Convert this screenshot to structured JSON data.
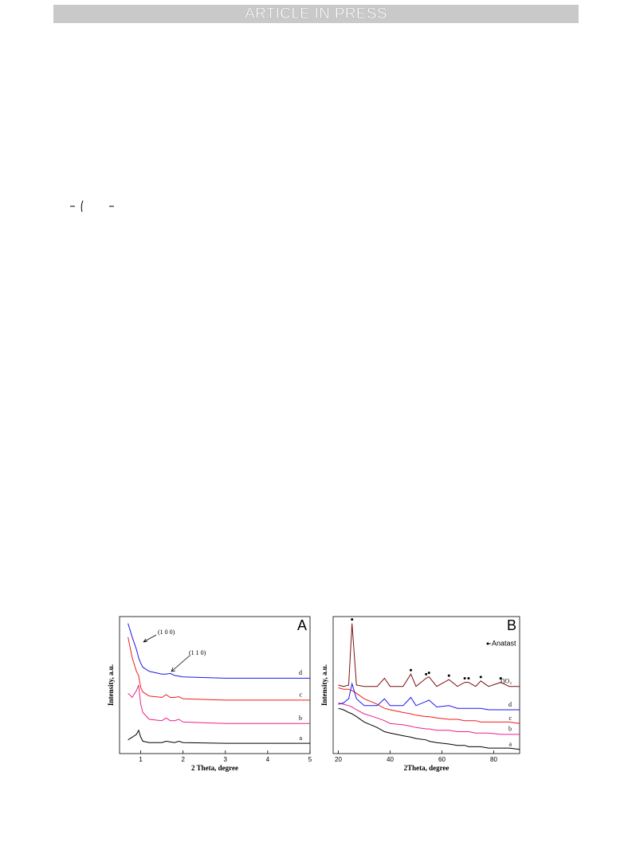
{
  "header": {
    "title": "ARTICLE IN PRESS"
  },
  "chart_data": [
    {
      "type": "line",
      "panel": "A",
      "xlabel": "2 Theta, degree",
      "ylabel": "Intensity, a.u.",
      "xlim": [
        0.5,
        5
      ],
      "xticks": [
        1,
        2,
        3,
        4,
        5
      ],
      "ylim": [
        0,
        100
      ],
      "annotations": [
        "(1 0 0)",
        "(1 1 0)"
      ],
      "x": [
        0.7,
        0.8,
        0.9,
        0.95,
        1.0,
        1.05,
        1.2,
        1.5,
        1.6,
        1.7,
        1.8,
        1.9,
        2,
        3,
        4,
        5
      ],
      "series": [
        {
          "name": "a",
          "color": "#000000",
          "values": [
            10,
            12,
            14,
            17,
            12,
            9,
            8,
            8,
            9,
            8.5,
            8,
            9,
            8,
            7.5,
            7.5,
            7.5
          ]
        },
        {
          "name": "b",
          "color": "#ee1f8c",
          "values": [
            44,
            41,
            46,
            50,
            36,
            30,
            25,
            24,
            26,
            24,
            24,
            25,
            23,
            22,
            22,
            22
          ]
        },
        {
          "name": "c",
          "color": "#ee1c1c",
          "values": [
            85,
            70,
            60,
            57,
            48,
            45,
            42,
            41,
            43,
            41,
            41,
            41.5,
            40,
            39,
            39,
            39
          ]
        },
        {
          "name": "d",
          "color": "#1a1aee",
          "values": [
            95,
            85,
            76,
            70,
            66,
            63,
            60,
            58,
            58,
            58.5,
            57,
            56.5,
            56,
            55,
            55,
            55
          ]
        }
      ]
    },
    {
      "type": "line",
      "panel": "B",
      "xlabel": "2Theta, degree",
      "ylabel": "Intensity, a.u.",
      "xlim": [
        18,
        90
      ],
      "xticks": [
        20,
        40,
        60,
        80
      ],
      "ylim": [
        0,
        100
      ],
      "legend": "Anatast",
      "peaks_x": [
        25.3,
        48,
        53.9,
        55,
        62.7,
        68.8,
        70.3,
        75,
        82.7
      ],
      "x": [
        20,
        22,
        24,
        25.3,
        27,
        30,
        35,
        37.8,
        40,
        45,
        48,
        50,
        53.9,
        55,
        58,
        62.7,
        66,
        68.8,
        70.3,
        73,
        75,
        78,
        82.7,
        86,
        90
      ],
      "series": [
        {
          "name": "a",
          "color": "#000000",
          "values": [
            33,
            32,
            30,
            29,
            27,
            23,
            19,
            16,
            15,
            13,
            12,
            11,
            10,
            9,
            8,
            7,
            6,
            6,
            5,
            5,
            5,
            4,
            4,
            4,
            3
          ]
        },
        {
          "name": "b",
          "color": "#ee1f8c",
          "values": [
            37,
            36,
            35,
            34,
            32,
            29,
            26,
            24,
            22,
            21,
            20,
            19,
            18,
            18,
            17,
            17,
            16,
            16,
            16,
            15,
            15,
            15,
            14,
            14,
            14
          ]
        },
        {
          "name": "c",
          "color": "#ee1c1c",
          "values": [
            48,
            47,
            47,
            46,
            44,
            40,
            36,
            33,
            32,
            30,
            29,
            28,
            27,
            27,
            26,
            25,
            25,
            24,
            24,
            24,
            23,
            23,
            23,
            23,
            22
          ]
        },
        {
          "name": "d",
          "color": "#1a1aee",
          "values": [
            36,
            37,
            40,
            51,
            40,
            35,
            35,
            40,
            35,
            35,
            41,
            35,
            38,
            39,
            34,
            35,
            33,
            33,
            33,
            33,
            33,
            32,
            32,
            32,
            32
          ]
        },
        {
          "name": "TiO₂",
          "color": "#7a0f0f",
          "values": [
            50,
            49,
            50,
            95,
            50,
            49,
            49,
            55,
            49,
            49,
            58,
            49,
            55,
            56,
            49,
            54,
            49,
            52,
            52,
            49,
            53,
            49,
            52,
            49,
            49
          ]
        }
      ]
    }
  ]
}
